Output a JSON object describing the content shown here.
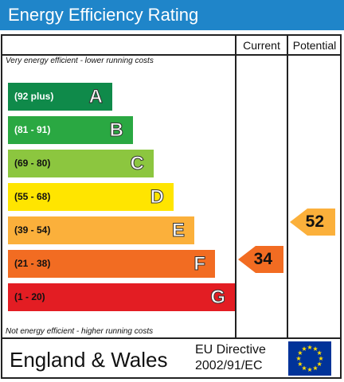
{
  "title": "Energy Efficiency Rating",
  "columns": {
    "current": "Current",
    "potential": "Potential"
  },
  "notes": {
    "top": "Very energy efficient - lower running costs",
    "bottom": "Not energy efficient - higher running costs"
  },
  "bands": [
    {
      "range": "(92 plus)",
      "letter": "A",
      "color": "#0f8a4a",
      "text_color": "#ffffff"
    },
    {
      "range": "(81 - 91)",
      "letter": "B",
      "color": "#2aa842",
      "text_color": "#ffffff"
    },
    {
      "range": "(69 - 80)",
      "letter": "C",
      "color": "#8cc63f",
      "text_color": "#111111"
    },
    {
      "range": "(55 - 68)",
      "letter": "D",
      "color": "#ffe500",
      "text_color": "#111111"
    },
    {
      "range": "(39 - 54)",
      "letter": "E",
      "color": "#fbb03b",
      "text_color": "#111111"
    },
    {
      "range": "(21 - 38)",
      "letter": "F",
      "color": "#f26c22",
      "text_color": "#111111"
    },
    {
      "range": "(1 - 20)",
      "letter": "G",
      "color": "#e31d23",
      "text_color": "#111111"
    }
  ],
  "current": {
    "value": "34",
    "band": "F",
    "color": "#f26c22"
  },
  "potential": {
    "value": "52",
    "band": "E",
    "color": "#fbb03b"
  },
  "footer": {
    "region": "England & Wales",
    "directive_line1": "EU Directive",
    "directive_line2": "2002/91/EC",
    "flag_icon": "eu-flag-icon",
    "flag_color": "#003399",
    "star_color": "#ffdd00"
  }
}
